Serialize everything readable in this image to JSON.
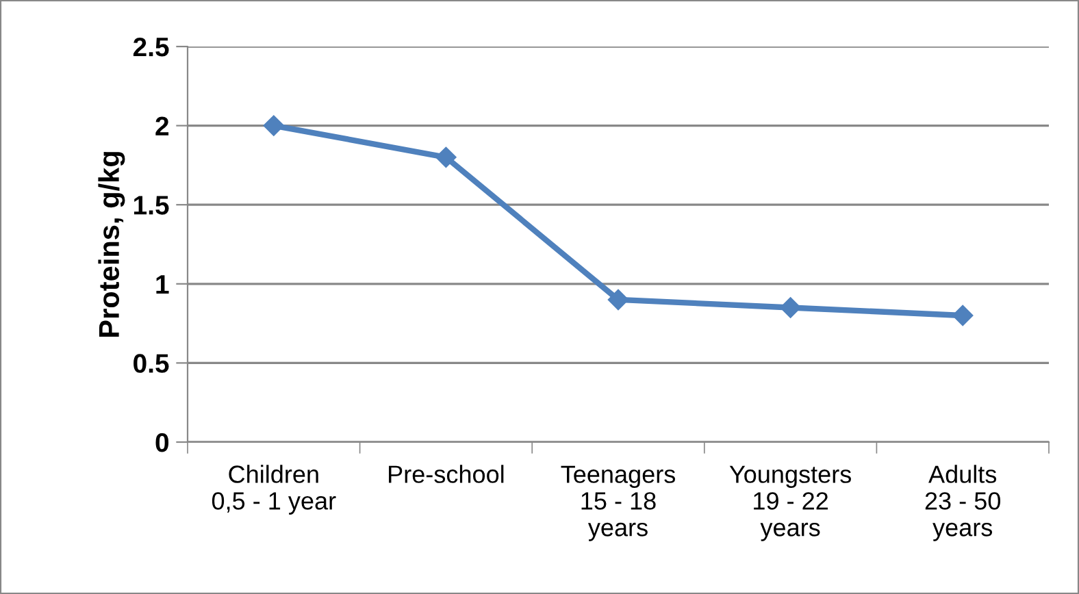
{
  "chart_data": {
    "type": "line",
    "ylabel": "Proteins, g/kg",
    "categories": [
      "Children\n0,5 - 1 year",
      "Pre-school",
      "Teenagers\n15 - 18\nyears",
      "Youngsters\n19 - 22\nyears",
      "Adults\n23 - 50\nyears"
    ],
    "series": [
      {
        "color": "#4f81bd",
        "values": [
          2,
          1.8,
          0.9,
          0.85,
          0.8
        ]
      }
    ],
    "ylim": [
      0,
      2.5
    ],
    "yticks": [
      0,
      0.5,
      1,
      1.5,
      2,
      2.5
    ],
    "grid": "y",
    "marker": "diamond",
    "line_style": "solid",
    "legend": false
  }
}
